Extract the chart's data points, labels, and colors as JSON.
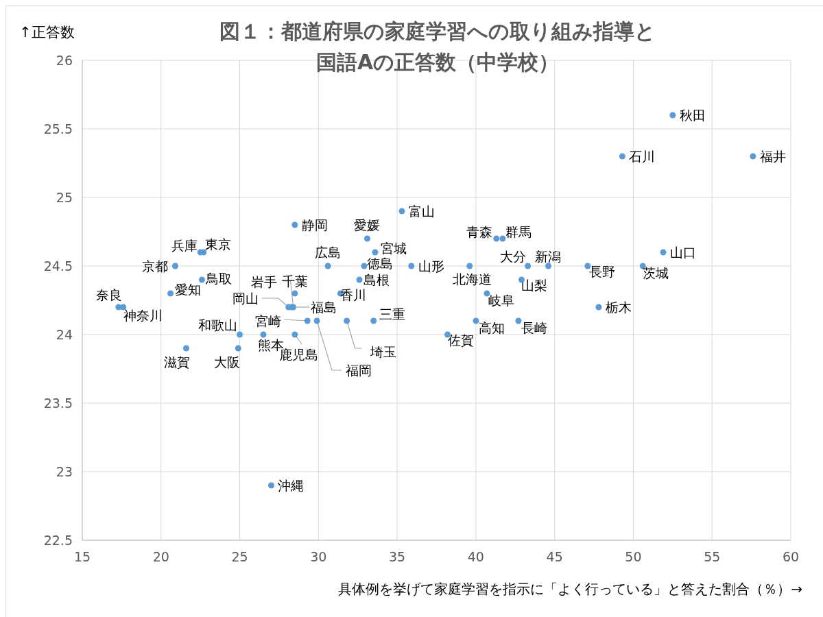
{
  "chart_data": {
    "type": "scatter",
    "title": "図１：都道府県の家庭学習への取り組み指導と国語Aの正答数（中学校）",
    "xlabel": "具体例を挙げて家庭学習を指示に「よく行っている」と答えた割合（％）→",
    "ylabel": "↑正答数",
    "xlim": [
      15,
      60
    ],
    "xticks": [
      15,
      20,
      25,
      30,
      35,
      40,
      45,
      50,
      55,
      60
    ],
    "ylim": [
      22.5,
      26
    ],
    "yticks": [
      22.5,
      23,
      23.5,
      24,
      24.5,
      25,
      25.5,
      26
    ],
    "grid": true,
    "marker": "circle",
    "series": [
      {
        "color": "#5b9bd5",
        "x": [
          39.6,
          41.3,
          28.4,
          33.6,
          52.5,
          35.9,
          28.3,
          50.6,
          47.8,
          41.7,
          31.8,
          28.5,
          22.7,
          17.6,
          44.6,
          35.3,
          49.3,
          57.6,
          42.9,
          47.1,
          40.7,
          28.5,
          20.6,
          33.5,
          21.6,
          20.9,
          24.9,
          22.5,
          17.3,
          25.0,
          22.6,
          32.6,
          28.1,
          30.6,
          51.9,
          32.9,
          31.4,
          33.1,
          40.0,
          29.9,
          38.2,
          42.7,
          26.5,
          43.3,
          29.3,
          28.5,
          27.0
        ],
        "values": [
          24.5,
          24.7,
          24.2,
          24.6,
          25.6,
          24.5,
          24.2,
          24.5,
          24.2,
          24.7,
          24.1,
          24.3,
          24.6,
          24.2,
          24.5,
          24.9,
          25.3,
          25.3,
          24.4,
          24.5,
          24.3,
          24.8,
          24.3,
          24.1,
          23.9,
          24.5,
          23.9,
          24.6,
          24.2,
          24.0,
          24.4,
          24.4,
          24.2,
          24.5,
          24.6,
          24.5,
          24.3,
          24.7,
          24.1,
          24.1,
          24.0,
          24.1,
          24.0,
          24.5,
          24.1,
          24.0,
          22.9
        ],
        "value_labels": [
          "北海道",
          "青森",
          "岩手",
          "宮城",
          "秋田",
          "山形",
          "福島",
          "茨城",
          "栃木",
          "群馬",
          "埼玉",
          "千葉",
          "東京",
          "神奈川",
          "新潟",
          "富山",
          "石川",
          "福井",
          "山梨",
          "長野",
          "岐阜",
          "静岡",
          "愛知",
          "三重",
          "滋賀",
          "京都",
          "大阪",
          "兵庫",
          "奈良",
          "和歌山",
          "鳥取",
          "島根",
          "岡山",
          "広島",
          "山口",
          "徳島",
          "香川",
          "愛媛",
          "高知",
          "福岡",
          "佐賀",
          "長崎",
          "熊本",
          "大分",
          "宮崎",
          "鹿児島",
          "沖縄"
        ]
      }
    ]
  }
}
